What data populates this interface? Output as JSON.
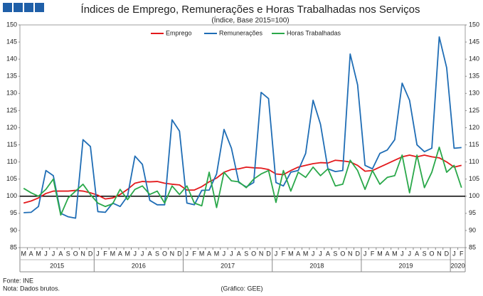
{
  "chart_data": {
    "type": "line",
    "title": "Índices de Emprego, Remunerações e Horas Trabalhadas nos Serviços",
    "subtitle": "(Índice, Base 2015=100)",
    "categories": [
      "M",
      "A",
      "M",
      "J",
      "J",
      "A",
      "S",
      "O",
      "N",
      "D",
      "J",
      "F",
      "M",
      "A",
      "M",
      "J",
      "J",
      "A",
      "S",
      "O",
      "N",
      "D",
      "J",
      "F",
      "M",
      "A",
      "M",
      "J",
      "J",
      "A",
      "S",
      "O",
      "N",
      "D",
      "J",
      "F",
      "M",
      "A",
      "M",
      "J",
      "J",
      "A",
      "S",
      "O",
      "N",
      "D",
      "J",
      "F",
      "M",
      "A",
      "M",
      "J",
      "J",
      "A",
      "S",
      "O",
      "N",
      "D",
      "J",
      "F"
    ],
    "years": [
      "2015",
      "2016",
      "2017",
      "2018",
      "2019",
      "2020"
    ],
    "series": [
      {
        "name": "Emprego",
        "color": "#e3191c",
        "values": [
          98,
          98.6,
          99.5,
          100.8,
          101.5,
          101.5,
          101.5,
          101.7,
          101.5,
          101,
          100.3,
          99.2,
          99.5,
          100.5,
          102,
          103.8,
          104.3,
          104.2,
          104.3,
          103.8,
          103.5,
          103.3,
          101.8,
          101.8,
          102.8,
          104.2,
          105.3,
          107,
          107.8,
          108,
          108.5,
          108.3,
          108.2,
          107.8,
          106.5,
          106.3,
          107.5,
          108.5,
          109,
          109.5,
          109.8,
          109.7,
          110.5,
          110.3,
          110,
          109,
          107.3,
          107.5,
          108.5,
          109.5,
          110.5,
          111.5,
          112,
          111.5,
          112,
          111.5,
          111.2,
          110,
          108.5,
          109
        ]
      },
      {
        "name": "Remunerações",
        "color": "#1f6db5",
        "values": [
          95.2,
          95.3,
          97,
          107.5,
          106,
          95,
          94,
          93.6,
          116.5,
          114.5,
          95.5,
          95.3,
          98,
          97,
          100,
          111.7,
          109.3,
          98.8,
          97.5,
          97.5,
          122.3,
          119,
          98,
          97.5,
          101.7,
          101.8,
          106.5,
          119.5,
          114,
          104,
          102.7,
          104,
          130.3,
          128.5,
          104,
          103,
          107,
          107.5,
          112.5,
          128,
          121,
          108,
          107.2,
          107.5,
          141.5,
          132.5,
          109,
          108,
          112.5,
          113.5,
          116.5,
          133,
          128,
          115,
          113,
          114,
          146.5,
          137.5,
          114,
          114.2
        ]
      },
      {
        "name": "Horas Trabalhadas",
        "color": "#2aa84a",
        "values": [
          102.3,
          101,
          100,
          102,
          105,
          94.5,
          99.5,
          101.5,
          103.5,
          100.5,
          98,
          97,
          97.8,
          102,
          99,
          102,
          103,
          100.5,
          101.5,
          98,
          103,
          100.5,
          103,
          98,
          97.2,
          107,
          96.7,
          107,
          104.5,
          104.2,
          102.5,
          105,
          106.5,
          107.5,
          98.2,
          107.5,
          101.5,
          107,
          105.5,
          108.5,
          106,
          108,
          103,
          103.5,
          110.5,
          107.5,
          102,
          107.5,
          103.5,
          105.5,
          106,
          112,
          101,
          112,
          102.5,
          107,
          114.3,
          107,
          109,
          102.5
        ]
      }
    ],
    "ylim": [
      85,
      150
    ],
    "yticks": [
      85,
      90,
      95,
      100,
      105,
      110,
      115,
      120,
      125,
      130,
      135,
      140,
      145,
      150
    ],
    "y2lim": [
      85,
      150
    ],
    "y2ticks": [
      85,
      90,
      95,
      100,
      105,
      110,
      115,
      120,
      125,
      130,
      135,
      140,
      145,
      150
    ],
    "reference_line": 100,
    "source": "Fonte: INE",
    "note": "Nota: Dados brutos.",
    "credit": "(Gráfico: GEE)"
  }
}
